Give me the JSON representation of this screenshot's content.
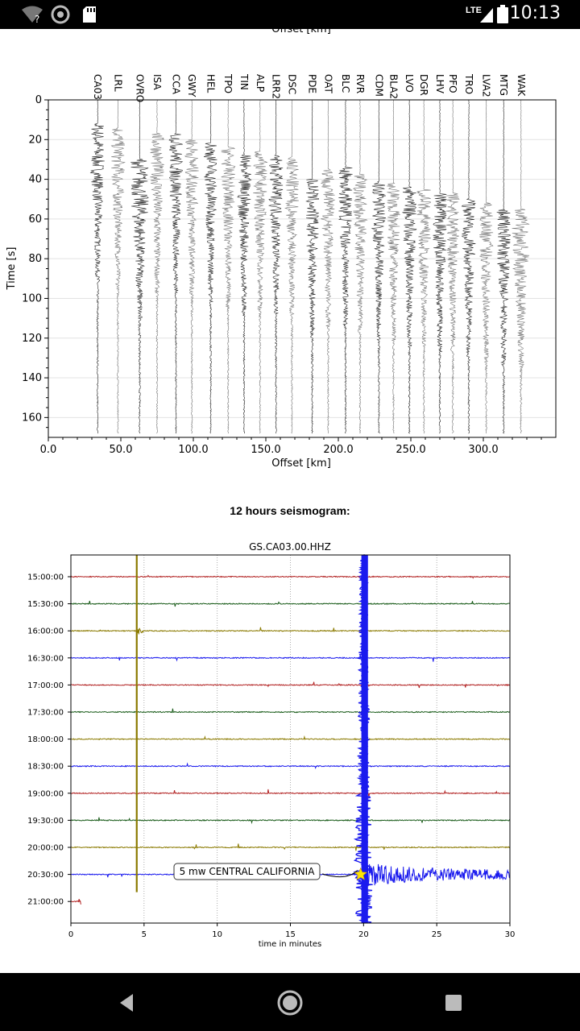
{
  "status_bar": {
    "time": "10:13",
    "network": "LTE",
    "icons": [
      "wifi-question-icon",
      "aperture-icon",
      "sd-card-icon",
      "signal-icon",
      "battery-icon"
    ]
  },
  "record_section": {
    "top_axis_cut_label": "Offset [km]",
    "xlabel": "Offset [km]",
    "ylabel": "Time [s]",
    "x_ticks": [
      "0.0",
      "50.0",
      "100.0",
      "150.0",
      "200.0",
      "250.0",
      "300.0"
    ],
    "y_ticks": [
      "0",
      "20",
      "40",
      "60",
      "80",
      "100",
      "120",
      "140",
      "160"
    ]
  },
  "helicorder": {
    "section_title": "12 hours seismogram:",
    "title": "GS.CA03.00.HHZ",
    "xlabel": "time in minutes",
    "x_ticks": [
      "0",
      "5",
      "10",
      "15",
      "20",
      "25",
      "30"
    ],
    "annotation": "5 mw CENTRAL CALIFORNIA"
  },
  "chart_data": [
    {
      "type": "line",
      "title": "",
      "xlabel": "Offset [km]",
      "ylabel": "Time [s]",
      "xlim": [
        0,
        350
      ],
      "ylim": [
        170,
        0
      ],
      "grid": true,
      "stations": [
        {
          "name": "CA03",
          "offset": 34,
          "arrival": 12
        },
        {
          "name": "LRL",
          "offset": 48,
          "arrival": 14
        },
        {
          "name": "OVRO",
          "offset": 63,
          "arrival": 30
        },
        {
          "name": "ISA",
          "offset": 75,
          "arrival": 17
        },
        {
          "name": "CCA",
          "offset": 88,
          "arrival": 17
        },
        {
          "name": "GWY",
          "offset": 99,
          "arrival": 20
        },
        {
          "name": "HEL",
          "offset": 112,
          "arrival": 22
        },
        {
          "name": "TPO",
          "offset": 124,
          "arrival": 24
        },
        {
          "name": "TIN",
          "offset": 135,
          "arrival": 27
        },
        {
          "name": "ALP",
          "offset": 146,
          "arrival": 26
        },
        {
          "name": "LRR2",
          "offset": 157,
          "arrival": 28
        },
        {
          "name": "DSC",
          "offset": 168,
          "arrival": 29
        },
        {
          "name": "PDE",
          "offset": 182,
          "arrival": 40
        },
        {
          "name": "OAT",
          "offset": 193,
          "arrival": 35
        },
        {
          "name": "BLC",
          "offset": 205,
          "arrival": 34
        },
        {
          "name": "RVR",
          "offset": 215,
          "arrival": 37
        },
        {
          "name": "CDM",
          "offset": 228,
          "arrival": 41
        },
        {
          "name": "BLA2",
          "offset": 238,
          "arrival": 42
        },
        {
          "name": "LVO",
          "offset": 249,
          "arrival": 44
        },
        {
          "name": "DGR",
          "offset": 259,
          "arrival": 45
        },
        {
          "name": "LHV",
          "offset": 270,
          "arrival": 47
        },
        {
          "name": "PFO",
          "offset": 279,
          "arrival": 47
        },
        {
          "name": "TRO",
          "offset": 290,
          "arrival": 50
        },
        {
          "name": "LVA2",
          "offset": 302,
          "arrival": 52
        },
        {
          "name": "MTG",
          "offset": 314,
          "arrival": 55
        },
        {
          "name": "WAK",
          "offset": 326,
          "arrival": 55
        }
      ]
    },
    {
      "type": "line",
      "title": "GS.CA03.00.HHZ",
      "xlabel": "time in minutes",
      "xlim": [
        0,
        30
      ],
      "grid": true,
      "colors": [
        "#b22222",
        "#1a5c1a",
        "#8b7a00",
        "#1a1aee"
      ],
      "rows": [
        "15:00:00",
        "15:30:00",
        "16:00:00",
        "16:30:00",
        "17:00:00",
        "17:30:00",
        "18:00:00",
        "18:30:00",
        "19:00:00",
        "19:30:00",
        "20:00:00",
        "20:30:00",
        "21:00:00"
      ],
      "event": {
        "label": "5 mw CENTRAL CALIFORNIA",
        "row": "20:30:00",
        "minute": 19.8
      },
      "large_signals": [
        {
          "row": "16:00:00",
          "minute": 4.5,
          "note": "olive spike across rows"
        },
        {
          "row": "20:30:00",
          "minute": 20.0,
          "note": "blue earthquake signal"
        }
      ]
    }
  ]
}
